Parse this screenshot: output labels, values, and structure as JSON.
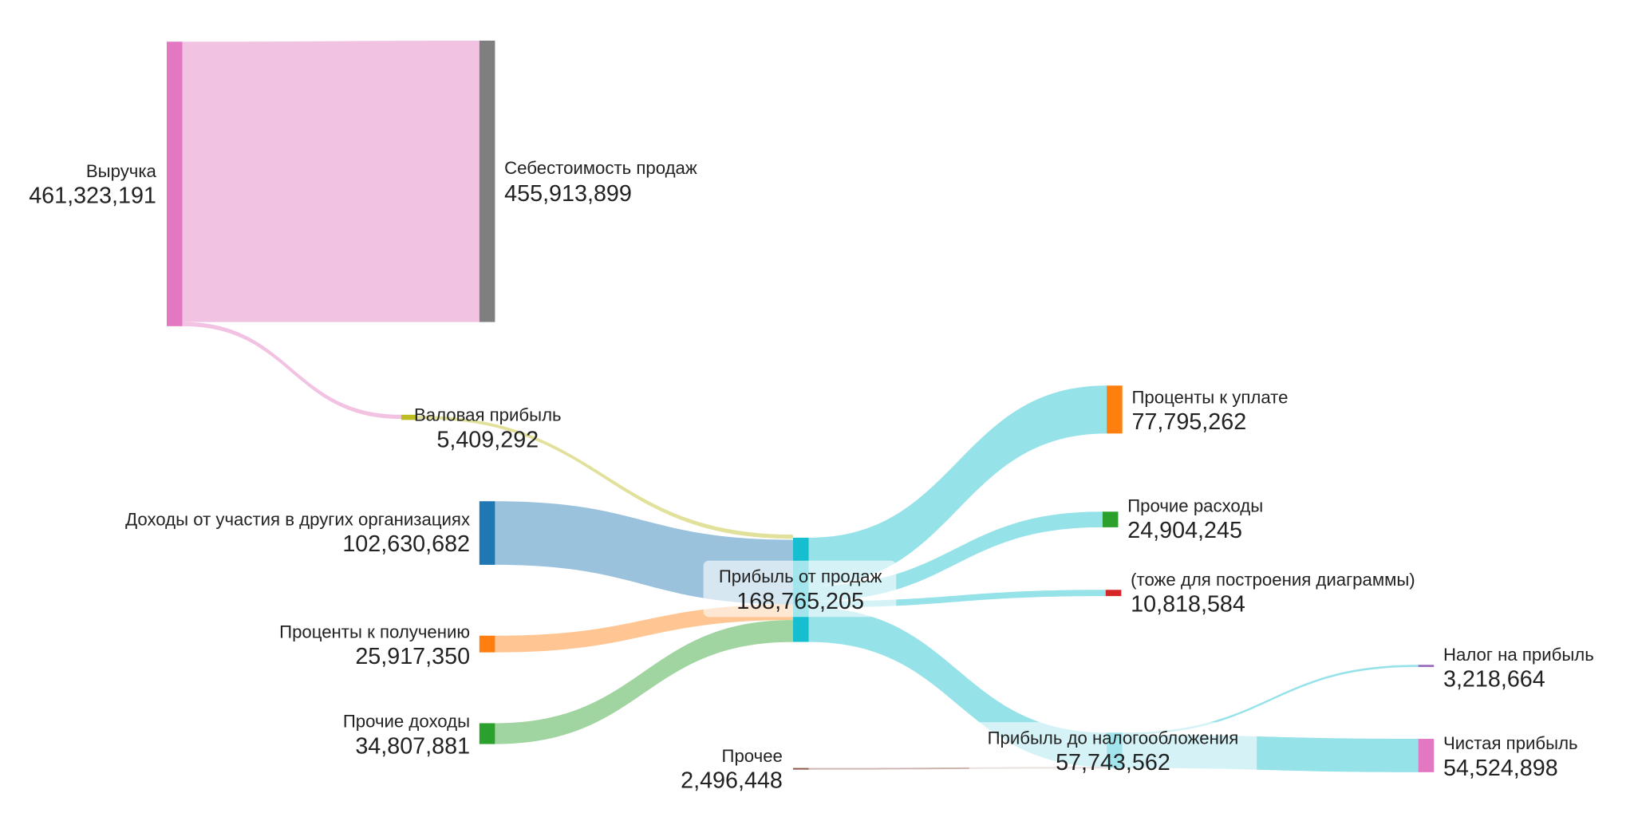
{
  "chart_data": {
    "type": "sankey",
    "nodes": [
      {
        "id": "revenue",
        "label": "Выручка",
        "value": "461,323,191",
        "color": "#e377c2"
      },
      {
        "id": "cogs",
        "label": "Себестоимость продаж",
        "value": "455,913,899",
        "color": "#7f7f7f"
      },
      {
        "id": "gross",
        "label": "Валовая прибыль",
        "value": "5,409,292",
        "color": "#bcbd22"
      },
      {
        "id": "participation",
        "label": "Доходы от участия в других организациях",
        "value": "102,630,682",
        "color": "#1f77b4"
      },
      {
        "id": "int_recv",
        "label": "Проценты к получению",
        "value": "25,917,350",
        "color": "#ff7f0e"
      },
      {
        "id": "other_inc",
        "label": "Прочие доходы",
        "value": "34,807,881",
        "color": "#2ca02c"
      },
      {
        "id": "sales_profit",
        "label": "Прибыль от продаж",
        "value": "168,765,205",
        "color": "#17becf"
      },
      {
        "id": "int_pay",
        "label": "Проценты к уплате",
        "value": "77,795,262",
        "color": "#ff7f0e"
      },
      {
        "id": "other_exp",
        "label": "Прочие расходы",
        "value": "24,904,245",
        "color": "#2ca02c"
      },
      {
        "id": "aux",
        "label": "(тоже для построения диаграммы)",
        "value": "10,818,584",
        "color": "#d62728"
      },
      {
        "id": "other",
        "label": "Прочее",
        "value": "2,496,448",
        "color": "#8c564b"
      },
      {
        "id": "pretax",
        "label": "Прибыль до налогообложения",
        "value": "57,743,562",
        "color": "#17becf"
      },
      {
        "id": "tax",
        "label": "Налог на прибыль",
        "value": "3,218,664",
        "color": "#9467bd"
      },
      {
        "id": "net",
        "label": "Чистая прибыль",
        "value": "54,524,898",
        "color": "#e377c2"
      }
    ],
    "links": [
      {
        "source": "revenue",
        "target": "cogs",
        "value": 455913899
      },
      {
        "source": "revenue",
        "target": "gross",
        "value": 5409292
      },
      {
        "source": "gross",
        "target": "sales_profit",
        "value": 5409292
      },
      {
        "source": "participation",
        "target": "sales_profit",
        "value": 102630682
      },
      {
        "source": "int_recv",
        "target": "sales_profit",
        "value": 25917350
      },
      {
        "source": "other_inc",
        "target": "sales_profit",
        "value": 34807881
      },
      {
        "source": "sales_profit",
        "target": "int_pay",
        "value": 77795262
      },
      {
        "source": "sales_profit",
        "target": "other_exp",
        "value": 24904245
      },
      {
        "source": "sales_profit",
        "target": "aux",
        "value": 10818584
      },
      {
        "source": "sales_profit",
        "target": "pretax",
        "value": 55247114
      },
      {
        "source": "other",
        "target": "pretax",
        "value": 2496448
      },
      {
        "source": "pretax",
        "target": "tax",
        "value": 3218664
      },
      {
        "source": "pretax",
        "target": "net",
        "value": 54524898
      }
    ]
  }
}
